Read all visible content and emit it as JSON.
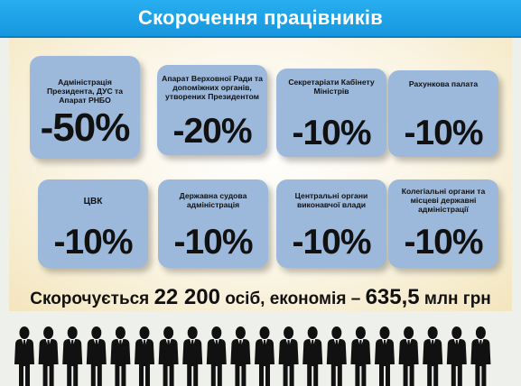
{
  "header": {
    "title": "Скорочення працівників"
  },
  "cards": [
    {
      "label": "Адміністрація Президента, ДУС та Апарат РНБО",
      "value": "-50%"
    },
    {
      "label": "Апарат Верховної Ради та допоміжних органів, утворених Президентом",
      "value": "-20%"
    },
    {
      "label": "Секретаріати Кабінету Міністрів",
      "value": "-10%"
    },
    {
      "label": "Рахункова палата",
      "value": "-10%"
    },
    {
      "label": "ЦВК",
      "value": "-10%"
    },
    {
      "label": "Державна судова адміністрація",
      "value": "-10%"
    },
    {
      "label": "Центральні органи виконавчої влади",
      "value": "-10%"
    },
    {
      "label": "Колегіальні органи та місцеві державні адміністрації",
      "value": "-10%"
    }
  ],
  "summary": {
    "prefix": "Скорочується ",
    "people_count": "22 200",
    "middle": " осіб, економія – ",
    "savings": "635,5",
    "suffix": " млн грн"
  },
  "figures": {
    "icon": "person-in-suit-icon",
    "color": "#111111"
  }
}
